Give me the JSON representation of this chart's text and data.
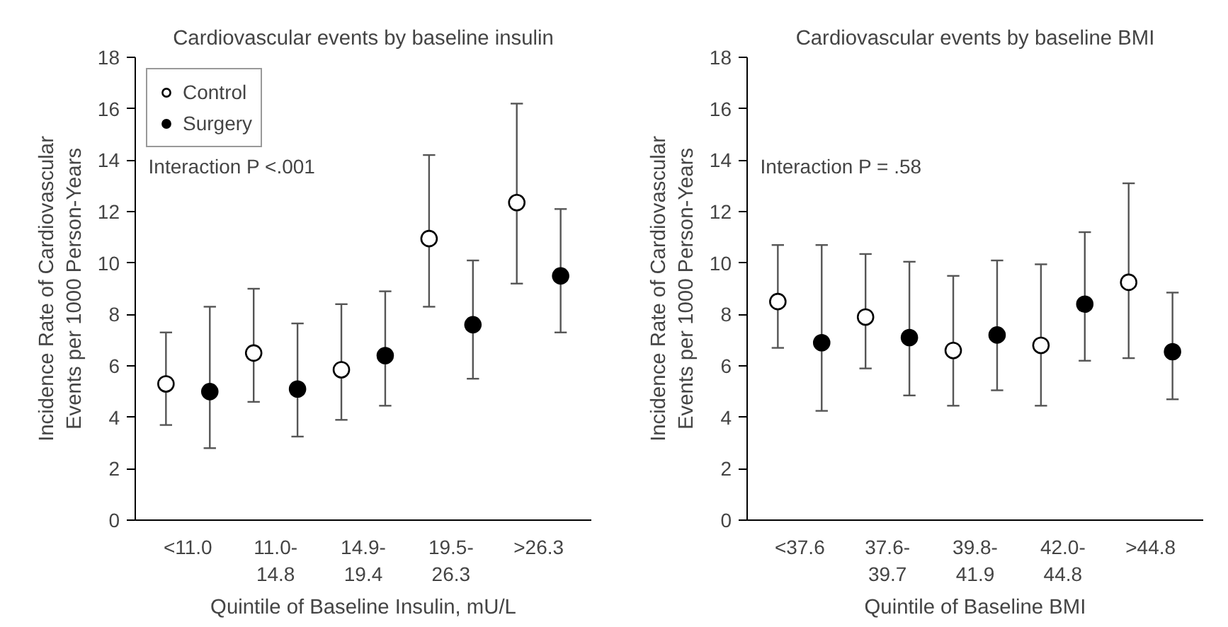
{
  "chart_data": [
    {
      "type": "scatter",
      "title": "Cardiovascular events by baseline insulin",
      "xlabel": "Quintile of Baseline Insulin, mU/L",
      "ylabel": "Incidence Rate of Cardiovascular\nEvents per 1000 Person-Years",
      "categories": [
        "<11.0",
        "11.0-\n14.8",
        "14.9-\n19.4",
        "19.5-\n26.3",
        ">26.3"
      ],
      "ylim": [
        0,
        18
      ],
      "yticks": [
        0,
        2,
        4,
        6,
        8,
        10,
        12,
        14,
        16,
        18
      ],
      "grid": false,
      "legend": "top left",
      "marker": "circle",
      "annotations": [
        "Interaction P <.001"
      ],
      "series": [
        {
          "name": "Control",
          "color": "#ffffff",
          "values": [
            5.3,
            6.5,
            5.85,
            10.95,
            12.35
          ],
          "errors": [
            [
              3.7,
              7.3
            ],
            [
              4.6,
              9.0
            ],
            [
              3.9,
              8.4
            ],
            [
              8.3,
              14.2
            ],
            [
              9.2,
              16.2
            ]
          ]
        },
        {
          "name": "Surgery",
          "color": "#000000",
          "values": [
            5.0,
            5.1,
            6.4,
            7.6,
            9.5
          ],
          "errors": [
            [
              2.8,
              8.3
            ],
            [
              3.25,
              7.65
            ],
            [
              4.45,
              8.9
            ],
            [
              5.5,
              10.1
            ],
            [
              7.3,
              12.1
            ]
          ]
        }
      ]
    },
    {
      "type": "scatter",
      "title": "Cardiovascular events by baseline BMI",
      "xlabel": "Quintile of Baseline BMI",
      "ylabel": "Incidence Rate of Cardiovascular\nEvents per 1000 Person-Years",
      "categories": [
        "<37.6",
        "37.6-\n39.7",
        "39.8-\n41.9",
        "42.0-\n44.8",
        ">44.8"
      ],
      "ylim": [
        0,
        18
      ],
      "yticks": [
        0,
        2,
        4,
        6,
        8,
        10,
        12,
        14,
        16,
        18
      ],
      "grid": false,
      "legend": false,
      "marker": "circle",
      "annotations": [
        "Interaction P = .58"
      ],
      "series": [
        {
          "color": "#ffffff",
          "values": [
            8.5,
            7.9,
            6.6,
            6.8,
            9.25
          ],
          "errors": [
            [
              6.7,
              10.7
            ],
            [
              5.9,
              10.35
            ],
            [
              4.45,
              9.5
            ],
            [
              4.45,
              9.95
            ],
            [
              6.3,
              13.1
            ]
          ]
        },
        {
          "color": "#000000",
          "values": [
            6.9,
            7.1,
            7.2,
            8.4,
            6.55
          ],
          "errors": [
            [
              4.25,
              10.7
            ],
            [
              4.85,
              10.05
            ],
            [
              5.05,
              10.1
            ],
            [
              6.2,
              11.2
            ],
            [
              4.7,
              8.85
            ]
          ]
        }
      ]
    }
  ]
}
